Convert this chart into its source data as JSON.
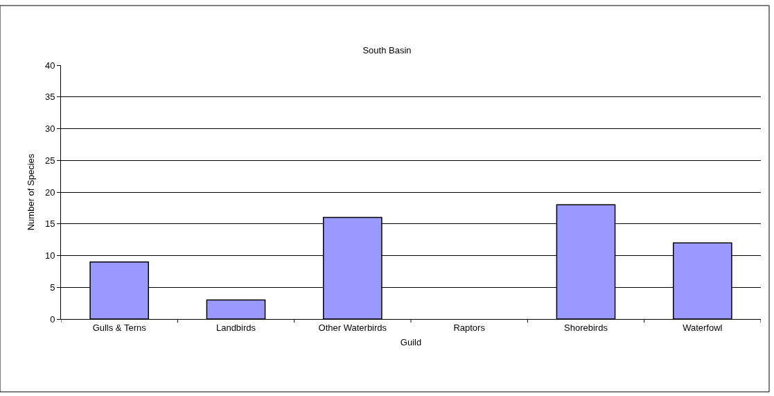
{
  "chart_data": {
    "type": "bar",
    "title": "South Basin",
    "xlabel": "Guild",
    "ylabel": "Number of Species",
    "categories": [
      "Gulls & Terns",
      "Landbirds",
      "Other Waterbirds",
      "Raptors",
      "Shorebirds",
      "Waterfowl"
    ],
    "values": [
      9,
      3,
      16,
      0,
      18,
      12
    ],
    "color": "#9999ff",
    "ylim": [
      0,
      40
    ],
    "yticks": [
      0,
      5,
      10,
      15,
      20,
      25,
      30,
      35,
      40
    ],
    "grid": "y",
    "legend": false
  }
}
